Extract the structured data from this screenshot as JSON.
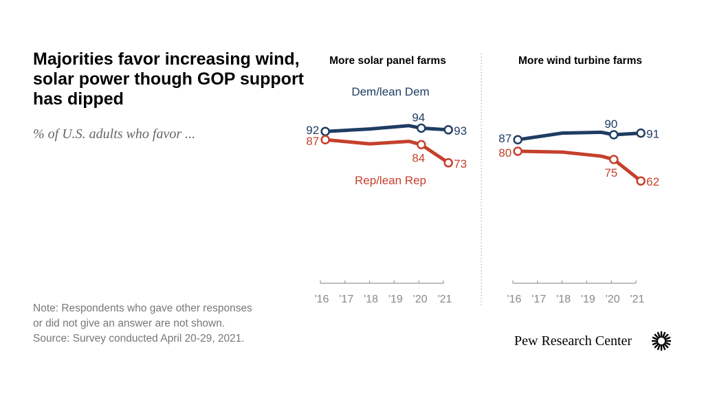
{
  "title": "Majorities favor increasing wind, solar power though GOP support has dipped",
  "subtitle": "% of U.S. adults who favor ...",
  "note": [
    "Note: Respondents who gave other responses",
    "or did not give an answer are not shown.",
    "Source: Survey conducted April 20-29, 2021."
  ],
  "logo": "Pew Research Center",
  "colors": {
    "dem": "#1f3d63",
    "rep": "#c5402c",
    "axis": "#999999"
  },
  "chart_data": [
    {
      "type": "line",
      "title": "More solar panel farms",
      "x_tick_labels": [
        "'16",
        "'17",
        "'18",
        "'19",
        "'20",
        "'21"
      ],
      "ylim": [
        0,
        100
      ],
      "series": [
        {
          "name": "Dem/lean Dem",
          "x": [
            2016.2,
            2018,
            2019.6,
            2020.1,
            2021.2
          ],
          "values": [
            92,
            93.5,
            95.5,
            94,
            93
          ],
          "labels": [
            "92",
            "",
            "",
            "94",
            "93"
          ]
        },
        {
          "name": "Rep/lean Rep",
          "x": [
            2016.2,
            2018,
            2019.6,
            2020.1,
            2021.2
          ],
          "values": [
            87,
            84.5,
            86,
            84,
            73
          ],
          "labels": [
            "87",
            "",
            "",
            "84",
            "73"
          ]
        }
      ]
    },
    {
      "type": "line",
      "title": "More wind turbine farms",
      "x_tick_labels": [
        "'16",
        "'17",
        "'18",
        "'19",
        "'20",
        "'21"
      ],
      "ylim": [
        0,
        100
      ],
      "series": [
        {
          "name": "",
          "x": [
            2016.2,
            2018,
            2019.6,
            2020.1,
            2021.2
          ],
          "values": [
            87,
            91,
            91.5,
            90,
            91
          ],
          "labels": [
            "87",
            "",
            "",
            "90",
            "91"
          ]
        },
        {
          "name": "",
          "x": [
            2016.2,
            2018,
            2019.6,
            2020.1,
            2021.2
          ],
          "values": [
            80,
            79.5,
            77,
            75,
            62
          ],
          "labels": [
            "80",
            "",
            "",
            "75",
            "62"
          ]
        }
      ]
    }
  ]
}
